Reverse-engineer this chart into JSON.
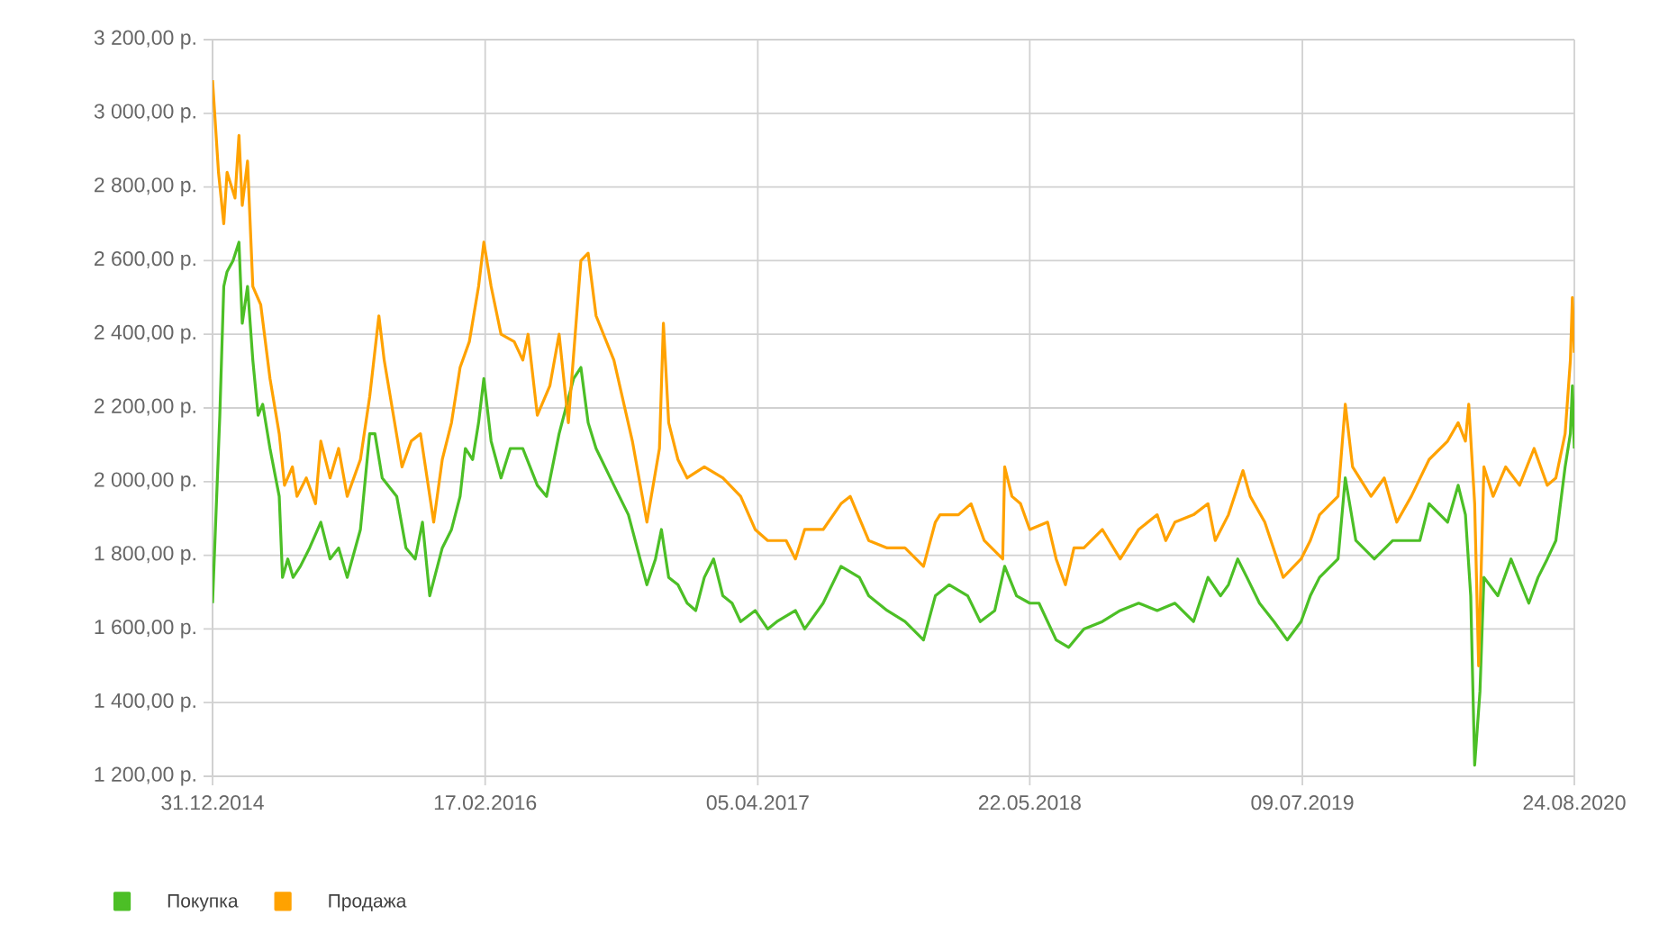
{
  "chart_data": {
    "type": "line",
    "xlim": [
      "2014-12-31",
      "2020-08-24"
    ],
    "xticks": [
      {
        "value": "2014-12-31",
        "label": "31.12.2014"
      },
      {
        "value": "2016-02-17",
        "label": "17.02.2016"
      },
      {
        "value": "2017-04-05",
        "label": "05.04.2017"
      },
      {
        "value": "2018-05-22",
        "label": "22.05.2018"
      },
      {
        "value": "2019-07-09",
        "label": "09.07.2019"
      },
      {
        "value": "2020-08-24",
        "label": "24.08.2020"
      }
    ],
    "ylim": [
      1200,
      3200
    ],
    "yticks": [
      {
        "value": 1200,
        "label": "1 200,00 р."
      },
      {
        "value": 1400,
        "label": "1 400,00 р."
      },
      {
        "value": 1600,
        "label": "1 600,00 р."
      },
      {
        "value": 1800,
        "label": "1 800,00 р."
      },
      {
        "value": 2000,
        "label": "2 000,00 р."
      },
      {
        "value": 2200,
        "label": "2 200,00 р."
      },
      {
        "value": 2400,
        "label": "2 400,00 р."
      },
      {
        "value": 2600,
        "label": "2 600,00 р."
      },
      {
        "value": 2800,
        "label": "2 800,00 р."
      },
      {
        "value": 3000,
        "label": "3 000,00 р."
      },
      {
        "value": 3200,
        "label": "3 200,00 р."
      }
    ],
    "grid": true,
    "legend": "bottom left",
    "marker": "none",
    "line_style": "solid",
    "series": [
      {
        "name": "Покупка",
        "color": "#4cbf26",
        "x": [
          "2014-12-31",
          "2015-01-11",
          "2015-01-17",
          "2015-01-22",
          "2015-01-31",
          "2015-02-09",
          "2015-02-14",
          "2015-02-22",
          "2015-03-02",
          "2015-03-10",
          "2015-03-17",
          "2015-03-28",
          "2015-04-11",
          "2015-04-16",
          "2015-04-24",
          "2015-05-02",
          "2015-05-13",
          "2015-05-27",
          "2015-06-13",
          "2015-06-27",
          "2015-07-10",
          "2015-07-23",
          "2015-08-12",
          "2015-08-26",
          "2015-09-03",
          "2015-09-14",
          "2015-10-06",
          "2015-10-20",
          "2015-11-03",
          "2015-11-14",
          "2015-11-25",
          "2015-12-14",
          "2015-12-28",
          "2016-01-10",
          "2016-01-18",
          "2016-01-29",
          "2016-02-07",
          "2016-02-15",
          "2016-02-26",
          "2016-03-12",
          "2016-03-26",
          "2016-04-14",
          "2016-05-06",
          "2016-05-20",
          "2016-06-08",
          "2016-06-30",
          "2016-07-11",
          "2016-07-22",
          "2016-08-03",
          "2016-08-30",
          "2016-09-21",
          "2016-10-19",
          "2016-11-01",
          "2016-11-10",
          "2016-11-21",
          "2016-12-05",
          "2016-12-19",
          "2017-01-01",
          "2017-01-14",
          "2017-01-28",
          "2017-02-11",
          "2017-02-25",
          "2017-03-10",
          "2017-04-01",
          "2017-04-20",
          "2017-05-04",
          "2017-06-01",
          "2017-06-15",
          "2017-07-13",
          "2017-08-09",
          "2017-09-06",
          "2017-09-20",
          "2017-10-18",
          "2017-11-14",
          "2017-12-12",
          "2017-12-30",
          "2018-01-20",
          "2018-02-17",
          "2018-03-08",
          "2018-03-30",
          "2018-04-14",
          "2018-05-02",
          "2018-05-22",
          "2018-06-05",
          "2018-07-01",
          "2018-07-20",
          "2018-08-12",
          "2018-09-09",
          "2018-10-06",
          "2018-11-03",
          "2018-12-01",
          "2018-12-28",
          "2019-01-25",
          "2019-02-16",
          "2019-03-07",
          "2019-03-19",
          "2019-04-02",
          "2019-04-16",
          "2019-05-05",
          "2019-05-27",
          "2019-06-16",
          "2019-07-07",
          "2019-07-21",
          "2019-08-04",
          "2019-09-01",
          "2019-09-12",
          "2019-09-28",
          "2019-10-26",
          "2019-11-23",
          "2020-01-03",
          "2020-01-17",
          "2020-02-14",
          "2020-03-01",
          "2020-03-12",
          "2020-03-20",
          "2020-03-26",
          "2020-04-03",
          "2020-04-09",
          "2020-04-30",
          "2020-05-20",
          "2020-06-16",
          "2020-06-30",
          "2020-07-14",
          "2020-07-27",
          "2020-08-10",
          "2020-08-18",
          "2020-08-21",
          "2020-08-24"
        ],
        "values": [
          1670,
          2180,
          2530,
          2570,
          2600,
          2650,
          2430,
          2530,
          2330,
          2180,
          2210,
          2090,
          1960,
          1740,
          1790,
          1740,
          1770,
          1820,
          1890,
          1790,
          1820,
          1740,
          1870,
          2130,
          2130,
          2010,
          1960,
          1820,
          1790,
          1890,
          1690,
          1820,
          1870,
          1960,
          2090,
          2060,
          2160,
          2280,
          2110,
          2010,
          2090,
          2090,
          1990,
          1960,
          2130,
          2280,
          2310,
          2160,
          2090,
          1990,
          1910,
          1720,
          1790,
          1870,
          1740,
          1720,
          1670,
          1650,
          1740,
          1790,
          1690,
          1670,
          1620,
          1650,
          1600,
          1620,
          1650,
          1600,
          1670,
          1770,
          1740,
          1690,
          1650,
          1620,
          1570,
          1690,
          1720,
          1690,
          1620,
          1650,
          1770,
          1690,
          1670,
          1670,
          1570,
          1550,
          1600,
          1620,
          1650,
          1670,
          1650,
          1670,
          1620,
          1740,
          1690,
          1720,
          1790,
          1740,
          1670,
          1620,
          1570,
          1620,
          1690,
          1740,
          1790,
          2010,
          1840,
          1790,
          1840,
          1840,
          1940,
          1890,
          1990,
          1910,
          1690,
          1230,
          1430,
          1740,
          1690,
          1790,
          1670,
          1740,
          1790,
          1840,
          2040,
          2130,
          2260,
          2090
        ]
      },
      {
        "name": "Продажа",
        "color": "#ffa200",
        "x": [
          "2014-12-31",
          "2015-01-09",
          "2015-01-17",
          "2015-01-22",
          "2015-02-03",
          "2015-02-09",
          "2015-02-14",
          "2015-02-22",
          "2015-03-02",
          "2015-03-14",
          "2015-03-28",
          "2015-04-11",
          "2015-04-19",
          "2015-05-01",
          "2015-05-08",
          "2015-05-22",
          "2015-06-05",
          "2015-06-13",
          "2015-06-27",
          "2015-07-10",
          "2015-07-23",
          "2015-08-12",
          "2015-08-26",
          "2015-09-09",
          "2015-09-17",
          "2015-10-01",
          "2015-10-14",
          "2015-10-28",
          "2015-11-11",
          "2015-12-01",
          "2015-12-14",
          "2015-12-28",
          "2016-01-10",
          "2016-01-24",
          "2016-02-07",
          "2016-02-15",
          "2016-02-26",
          "2016-03-12",
          "2016-04-01",
          "2016-04-14",
          "2016-04-22",
          "2016-05-06",
          "2016-05-25",
          "2016-06-08",
          "2016-06-22",
          "2016-07-11",
          "2016-07-22",
          "2016-08-03",
          "2016-08-30",
          "2016-09-27",
          "2016-10-19",
          "2016-11-07",
          "2016-11-13",
          "2016-11-21",
          "2016-12-05",
          "2016-12-19",
          "2017-01-14",
          "2017-02-11",
          "2017-03-10",
          "2017-04-01",
          "2017-04-20",
          "2017-05-18",
          "2017-06-01",
          "2017-06-15",
          "2017-07-13",
          "2017-08-09",
          "2017-08-23",
          "2017-09-20",
          "2017-10-18",
          "2017-11-14",
          "2017-12-12",
          "2017-12-30",
          "2018-01-06",
          "2018-02-03",
          "2018-02-22",
          "2018-03-14",
          "2018-04-11",
          "2018-04-14",
          "2018-04-25",
          "2018-05-08",
          "2018-05-22",
          "2018-06-18",
          "2018-07-01",
          "2018-07-15",
          "2018-07-28",
          "2018-08-12",
          "2018-09-09",
          "2018-10-06",
          "2018-11-03",
          "2018-12-01",
          "2018-12-14",
          "2018-12-28",
          "2019-01-25",
          "2019-02-16",
          "2019-02-27",
          "2019-03-19",
          "2019-04-10",
          "2019-04-21",
          "2019-05-13",
          "2019-06-10",
          "2019-07-07",
          "2019-07-21",
          "2019-08-04",
          "2019-09-01",
          "2019-09-12",
          "2019-09-23",
          "2019-10-21",
          "2019-11-10",
          "2019-11-29",
          "2019-12-21",
          "2020-01-17",
          "2020-02-14",
          "2020-03-01",
          "2020-03-12",
          "2020-03-17",
          "2020-03-26",
          "2020-04-01",
          "2020-04-09",
          "2020-04-23",
          "2020-05-12",
          "2020-06-02",
          "2020-06-24",
          "2020-07-14",
          "2020-07-27",
          "2020-08-10",
          "2020-08-18",
          "2020-08-21",
          "2020-08-24"
        ],
        "values": [
          3090,
          2840,
          2700,
          2840,
          2770,
          2940,
          2750,
          2870,
          2530,
          2480,
          2280,
          2130,
          1990,
          2040,
          1960,
          2010,
          1940,
          2110,
          2010,
          2090,
          1960,
          2060,
          2230,
          2450,
          2330,
          2180,
          2040,
          2110,
          2130,
          1890,
          2060,
          2160,
          2310,
          2380,
          2530,
          2650,
          2530,
          2400,
          2380,
          2330,
          2400,
          2180,
          2260,
          2400,
          2160,
          2600,
          2620,
          2450,
          2330,
          2110,
          1890,
          2090,
          2430,
          2160,
          2060,
          2010,
          2040,
          2010,
          1960,
          1870,
          1840,
          1840,
          1790,
          1870,
          1870,
          1940,
          1960,
          1840,
          1820,
          1820,
          1770,
          1890,
          1910,
          1910,
          1940,
          1840,
          1790,
          2040,
          1960,
          1940,
          1870,
          1890,
          1790,
          1720,
          1820,
          1820,
          1870,
          1790,
          1870,
          1910,
          1840,
          1890,
          1910,
          1940,
          1840,
          1910,
          2030,
          1960,
          1890,
          1740,
          1790,
          1840,
          1910,
          1960,
          2210,
          2040,
          1960,
          2010,
          1890,
          1960,
          2060,
          2110,
          2160,
          2110,
          2210,
          1940,
          1500,
          2040,
          1960,
          2040,
          1990,
          2090,
          1990,
          2010,
          2130,
          2330,
          2500,
          2350
        ]
      }
    ]
  }
}
